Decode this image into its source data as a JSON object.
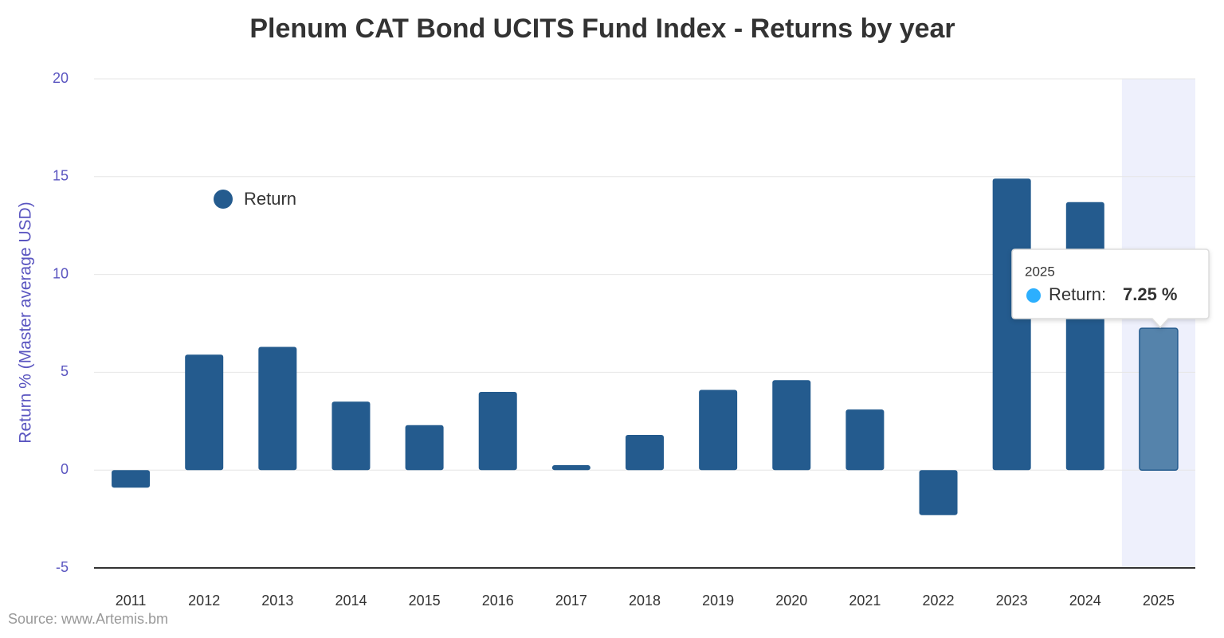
{
  "chart_data": {
    "type": "bar",
    "title": "Plenum CAT Bond UCITS Fund Index - Returns by year",
    "y_label": "Return % (Master average USD)",
    "categories": [
      "2011",
      "2012",
      "2013",
      "2014",
      "2015",
      "2016",
      "2017",
      "2018",
      "2019",
      "2020",
      "2021",
      "2022",
      "2023",
      "2024",
      "2025"
    ],
    "series": [
      {
        "name": "Return",
        "color": "#245b8e",
        "values": [
          -0.9,
          5.9,
          6.3,
          3.5,
          2.3,
          4.0,
          0.25,
          1.8,
          4.1,
          4.6,
          3.1,
          -2.3,
          14.9,
          13.7,
          7.25
        ]
      }
    ],
    "ylim": [
      -5,
      20
    ],
    "yticks": [
      -5,
      0,
      5,
      10,
      15,
      20
    ],
    "grid": true,
    "highlight_color": "#5583ab",
    "tooltip": {
      "category": "2025",
      "label": "Return:",
      "value": 7.25,
      "value_label": "7.25 %",
      "color": "#2caffe"
    },
    "source": "Source: www.Artemis.bm"
  }
}
